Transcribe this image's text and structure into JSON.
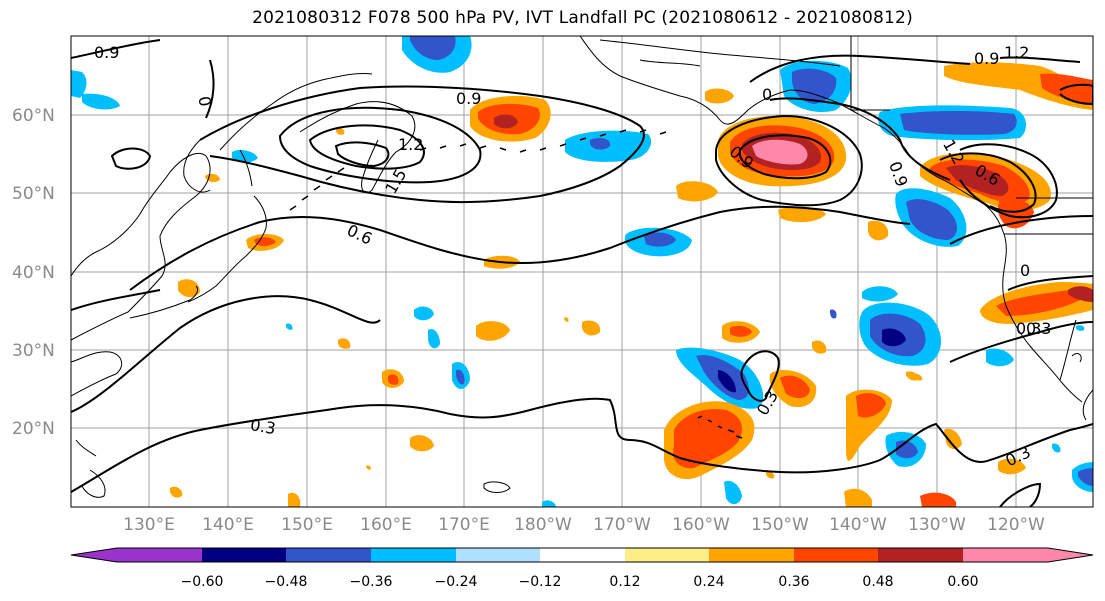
{
  "title": "2021080312 F078 500 hPa PV, IVT Landfall PC (2021080612 - 2021080812)",
  "colors": {
    "grid": "#a0a0a0",
    "coast": "#000000",
    "contour": "#000000",
    "axis_text": "#8a8a8a"
  },
  "lat_labels": [
    "60°N",
    "50°N",
    "40°N",
    "30°N",
    "20°N"
  ],
  "lon_labels": [
    "130°E",
    "140°E",
    "150°E",
    "160°E",
    "170°E",
    "180°W",
    "170°W",
    "160°W",
    "150°W",
    "140°W",
    "130°W",
    "120°W"
  ],
  "contour_labels": [
    "0.9",
    "0.9",
    "1.2",
    "1.5",
    "0.6",
    "0.9",
    "1.2",
    "0.9",
    "0.9",
    "1.2",
    "0.3",
    "0.3",
    "0.3",
    "0.3",
    "0",
    "0",
    "0",
    "0.3",
    "0.6"
  ],
  "colorbar": {
    "colors": [
      "#9933cc",
      "#000080",
      "#3355cc",
      "#00bfff",
      "#b0e0ff",
      "#ffffff",
      "#ffee88",
      "#ffa500",
      "#ff4500",
      "#b22222",
      "#ff88aa"
    ],
    "tick_labels": [
      "−0.60",
      "−0.48",
      "−0.36",
      "−0.24",
      "−0.12",
      "0.12",
      "0.24",
      "0.36",
      "0.48",
      "0.60"
    ]
  }
}
